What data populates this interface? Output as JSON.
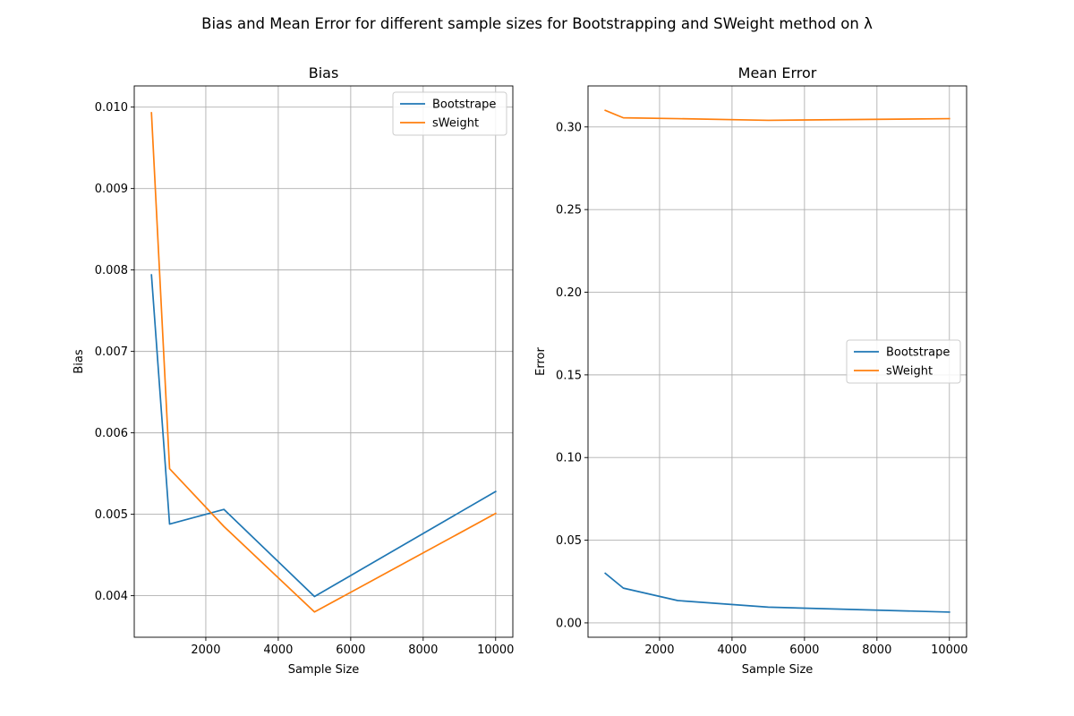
{
  "figure": {
    "title": "Bias and Mean Error for different sample sizes for Bootstrapping and SWeight method on λ"
  },
  "colors": {
    "bootstrap": "#1f77b4",
    "sweight": "#ff7f0e"
  },
  "chart_data": [
    {
      "type": "line",
      "title": "Bias",
      "xlabel": "Sample Size",
      "ylabel": "Bias",
      "xlim": [
        25,
        10475
      ],
      "ylim": [
        0.00349,
        0.01026
      ],
      "xticks": [
        2000,
        4000,
        6000,
        8000,
        10000
      ],
      "xtick_labels": [
        "2000",
        "4000",
        "6000",
        "8000",
        "10000"
      ],
      "yticks": [
        0.004,
        0.005,
        0.006,
        0.007,
        0.008,
        0.009,
        0.01
      ],
      "ytick_labels": [
        "0.004",
        "0.005",
        "0.006",
        "0.007",
        "0.008",
        "0.009",
        "0.010"
      ],
      "grid": true,
      "legend_position": "top-right",
      "x": [
        500,
        1000,
        2500,
        5000,
        10000
      ],
      "series": [
        {
          "name": "Bootstrape",
          "color": "#1f77b4",
          "values": [
            0.00794,
            0.00488,
            0.00506,
            0.00399,
            0.00528
          ]
        },
        {
          "name": "sWeight",
          "color": "#ff7f0e",
          "values": [
            0.00993,
            0.00556,
            0.00485,
            0.0038,
            0.00501
          ]
        }
      ]
    },
    {
      "type": "line",
      "title": "Mean Error",
      "xlabel": "Sample Size",
      "ylabel": "Error",
      "xlim": [
        25,
        10475
      ],
      "ylim": [
        -0.0087,
        0.3248
      ],
      "xticks": [
        2000,
        4000,
        6000,
        8000,
        10000
      ],
      "xtick_labels": [
        "2000",
        "4000",
        "6000",
        "8000",
        "10000"
      ],
      "yticks": [
        0.0,
        0.05,
        0.1,
        0.15,
        0.2,
        0.25,
        0.3
      ],
      "ytick_labels": [
        "0.00",
        "0.05",
        "0.10",
        "0.15",
        "0.20",
        "0.25",
        "0.30"
      ],
      "grid": true,
      "legend_position": "center-right",
      "x": [
        500,
        1000,
        2500,
        5000,
        10000
      ],
      "series": [
        {
          "name": "Bootstrape",
          "color": "#1f77b4",
          "values": [
            0.03,
            0.021,
            0.0135,
            0.0095,
            0.0065
          ]
        },
        {
          "name": "sWeight",
          "color": "#ff7f0e",
          "values": [
            0.31,
            0.3055,
            0.305,
            0.304,
            0.305
          ]
        }
      ]
    }
  ]
}
